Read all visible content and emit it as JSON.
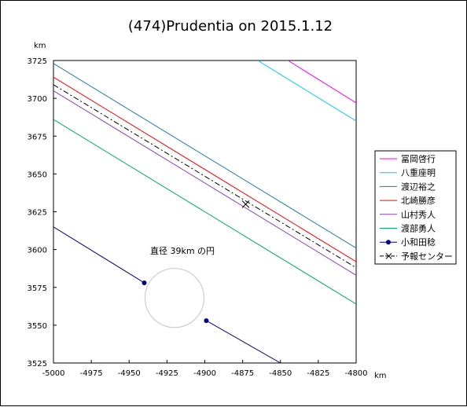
{
  "chart_data": {
    "type": "line",
    "title": "(474)Prudentia on 2015.1.12",
    "xlabel": "km",
    "ylabel": "km",
    "xlim": [
      -5000,
      -4800
    ],
    "ylim": [
      3525,
      3725
    ],
    "xticks": [
      -5000,
      -4975,
      -4950,
      -4925,
      -4900,
      -4875,
      -4850,
      -4825,
      -4800
    ],
    "yticks": [
      3525,
      3550,
      3575,
      3600,
      3625,
      3650,
      3675,
      3700,
      3725
    ],
    "legend_position": "right",
    "series": [
      {
        "name": "冨岡啓行",
        "color": "#ff00ff",
        "style": "solid",
        "points": [
          [
            -4845,
            3725
          ],
          [
            -4800,
            3697
          ]
        ]
      },
      {
        "name": "八重座明",
        "color": "#00ccff",
        "style": "solid",
        "points": [
          [
            -4865,
            3725
          ],
          [
            -4800,
            3685
          ]
        ]
      },
      {
        "name": "渡辺裕之",
        "color": "#1f77b4",
        "style": "solid",
        "points": [
          [
            -5000,
            3723
          ],
          [
            -4800,
            3601
          ]
        ]
      },
      {
        "name": "北崎勝彦",
        "color": "#ff0000",
        "style": "solid",
        "points": [
          [
            -5000,
            3714
          ],
          [
            -4800,
            3592
          ]
        ]
      },
      {
        "name": "山村秀人",
        "color": "#8b3fbf",
        "style": "solid",
        "points": [
          [
            -5000,
            3705
          ],
          [
            -4800,
            3583
          ]
        ]
      },
      {
        "name": "渡部勇人",
        "color": "#00aa66",
        "style": "solid",
        "points": [
          [
            -5000,
            3686
          ],
          [
            -4800,
            3564
          ]
        ]
      },
      {
        "name": "小和田稔",
        "color": "#000080",
        "style": "solid",
        "markers": true,
        "points": [
          [
            -5000,
            3615
          ],
          [
            -4940,
            3578
          ]
        ],
        "points2": [
          [
            -4899,
            3553
          ],
          [
            -4850,
            3525
          ]
        ]
      },
      {
        "name": "予報センター",
        "color": "#000000",
        "style": "dashed",
        "points": [
          [
            -5000,
            3709
          ],
          [
            -4800,
            3588
          ]
        ]
      }
    ],
    "center_marker": {
      "x": -4873,
      "y": 3630
    },
    "circle": {
      "label": "直径 39km の円",
      "cx": -4920,
      "cy": 3568,
      "diameter": 39,
      "color": "#cccccc"
    }
  }
}
